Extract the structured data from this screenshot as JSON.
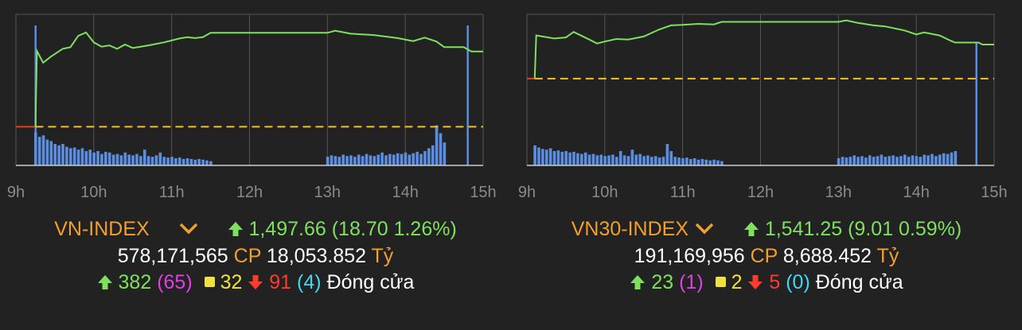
{
  "panels": [
    {
      "name": "VN-INDEX",
      "value": "1,497.66",
      "change": "(18.70 1.26%)",
      "volume": "578,171,565",
      "volume_unit": "CP",
      "turnover": "18,053.852",
      "turnover_unit": "Tỷ",
      "advancers": "382",
      "ceiling": "(65)",
      "unchanged": "32",
      "decliners": "91",
      "floor": "(4)",
      "status": "Đóng cửa"
    },
    {
      "name": "VN30-INDEX",
      "value": "1,541.25",
      "change": "(9.01 0.59%)",
      "volume": "191,169,956",
      "volume_unit": "CP",
      "turnover": "8,688.452",
      "turnover_unit": "Tỷ",
      "advancers": "23",
      "ceiling": "(1)",
      "unchanged": "2",
      "decliners": "5",
      "floor": "(0)",
      "status": "Đóng cửa"
    }
  ],
  "colors": {
    "line": "#7fe060",
    "reference": "#f0c030",
    "volume": "#5b8ee0",
    "grid": "#555555",
    "axis_text": "#8a8a8a",
    "name": "#f0a030"
  },
  "icons": [
    "arrow-up-icon",
    "chevron-down-icon",
    "square-icon",
    "arrow-down-icon"
  ],
  "chart_data": [
    {
      "type": "line",
      "x_ticks": [
        "9h",
        "10h",
        "11h",
        "12h",
        "13h",
        "14h",
        "15h"
      ],
      "x_range": [
        9,
        15
      ],
      "y_range": [
        1470,
        1505
      ],
      "reference_value": 1478.96,
      "grid": true,
      "series": [
        {
          "x": [
            9.25,
            9.27,
            9.35,
            9.45,
            9.6,
            9.7,
            9.8,
            9.9,
            10.0,
            10.1,
            10.2,
            10.3,
            10.4,
            10.5,
            10.7,
            10.9,
            11.1,
            11.2,
            11.3,
            11.4,
            11.5,
            12.0,
            12.5,
            13.0,
            13.1,
            13.3,
            13.6,
            13.9,
            14.1,
            14.25,
            14.4,
            14.5,
            14.75,
            14.85,
            15.0
          ],
          "y": [
            1478.96,
            1496.5,
            1493.8,
            1495.2,
            1497.0,
            1497.4,
            1500.0,
            1500.8,
            1498.5,
            1497.5,
            1497.8,
            1497.0,
            1498.0,
            1497.2,
            1497.8,
            1498.5,
            1499.4,
            1499.7,
            1499.5,
            1499.7,
            1500.7,
            1500.7,
            1500.7,
            1500.7,
            1501.2,
            1500.5,
            1500.2,
            1499.5,
            1498.8,
            1499.6,
            1498.7,
            1497.4,
            1497.4,
            1496.4,
            1496.4
          ]
        }
      ],
      "volume": {
        "x": [
          9.25,
          9.3,
          9.35,
          9.4,
          9.45,
          9.5,
          9.55,
          9.6,
          9.65,
          9.7,
          9.75,
          9.8,
          9.85,
          9.9,
          9.95,
          10.0,
          10.05,
          10.1,
          10.15,
          10.2,
          10.25,
          10.3,
          10.35,
          10.4,
          10.45,
          10.5,
          10.55,
          10.6,
          10.65,
          10.7,
          10.75,
          10.8,
          10.85,
          10.9,
          10.95,
          11.0,
          11.05,
          11.1,
          11.15,
          11.2,
          11.25,
          11.3,
          11.35,
          11.4,
          11.45,
          11.5,
          13.0,
          13.05,
          13.1,
          13.15,
          13.2,
          13.25,
          13.3,
          13.35,
          13.4,
          13.45,
          13.5,
          13.55,
          13.6,
          13.65,
          13.7,
          13.75,
          13.8,
          13.85,
          13.9,
          13.95,
          14.0,
          14.05,
          14.1,
          14.15,
          14.2,
          14.25,
          14.3,
          14.35,
          14.4,
          14.45,
          14.5
        ],
        "v": [
          0.46,
          0.4,
          0.42,
          0.36,
          0.34,
          0.3,
          0.28,
          0.3,
          0.26,
          0.24,
          0.25,
          0.22,
          0.24,
          0.2,
          0.22,
          0.18,
          0.2,
          0.16,
          0.19,
          0.18,
          0.15,
          0.16,
          0.14,
          0.18,
          0.15,
          0.14,
          0.16,
          0.13,
          0.22,
          0.13,
          0.12,
          0.14,
          0.18,
          0.12,
          0.11,
          0.12,
          0.1,
          0.11,
          0.09,
          0.1,
          0.09,
          0.08,
          0.09,
          0.08,
          0.07,
          0.06,
          0.12,
          0.14,
          0.13,
          0.12,
          0.15,
          0.13,
          0.14,
          0.12,
          0.15,
          0.13,
          0.16,
          0.14,
          0.13,
          0.15,
          0.18,
          0.14,
          0.16,
          0.15,
          0.17,
          0.16,
          0.18,
          0.15,
          0.17,
          0.19,
          0.16,
          0.2,
          0.24,
          0.28,
          0.56,
          0.45,
          0.32
        ],
        "spikes": [
          {
            "x": 9.25,
            "v": 1.0
          },
          {
            "x": 14.8,
            "v": 1.0
          }
        ]
      }
    },
    {
      "type": "line",
      "x_ticks": [
        "9h",
        "10h",
        "11h",
        "12h",
        "13h",
        "14h",
        "15h"
      ],
      "x_range": [
        9,
        15
      ],
      "y_range": [
        1515,
        1545
      ],
      "reference_value": 1532.24,
      "grid": true,
      "series": [
        {
          "x": [
            9.1,
            9.12,
            9.2,
            9.35,
            9.5,
            9.6,
            9.8,
            9.9,
            10.0,
            10.15,
            10.3,
            10.5,
            10.7,
            10.85,
            11.0,
            11.2,
            11.4,
            11.5,
            12.0,
            12.5,
            13.0,
            13.1,
            13.25,
            13.45,
            13.6,
            13.85,
            14.0,
            14.1,
            14.3,
            14.45,
            14.5,
            14.7,
            14.8,
            14.85,
            15.0
          ],
          "y": [
            1532.24,
            1540.8,
            1540.6,
            1540.2,
            1540.4,
            1541.5,
            1540.0,
            1539.2,
            1539.6,
            1540.1,
            1540.0,
            1540.6,
            1542.0,
            1542.8,
            1542.9,
            1543.1,
            1543.0,
            1543.5,
            1543.5,
            1543.5,
            1543.5,
            1543.8,
            1543.3,
            1542.8,
            1542.6,
            1541.8,
            1541.0,
            1541.4,
            1540.8,
            1539.7,
            1539.4,
            1539.4,
            1539.4,
            1539.0,
            1539.0
          ]
        }
      ],
      "volume": {
        "x": [
          9.1,
          9.15,
          9.2,
          9.25,
          9.3,
          9.35,
          9.4,
          9.45,
          9.5,
          9.55,
          9.6,
          9.65,
          9.7,
          9.75,
          9.8,
          9.85,
          9.9,
          9.95,
          10.0,
          10.05,
          10.1,
          10.15,
          10.2,
          10.25,
          10.3,
          10.35,
          10.4,
          10.45,
          10.5,
          10.55,
          10.6,
          10.65,
          10.7,
          10.75,
          10.8,
          10.85,
          10.9,
          10.95,
          11.0,
          11.05,
          11.1,
          11.15,
          11.2,
          11.25,
          11.3,
          11.35,
          11.4,
          11.45,
          11.5,
          13.0,
          13.05,
          13.1,
          13.15,
          13.2,
          13.25,
          13.3,
          13.35,
          13.4,
          13.45,
          13.5,
          13.55,
          13.6,
          13.65,
          13.7,
          13.75,
          13.8,
          13.85,
          13.9,
          13.95,
          14.0,
          14.05,
          14.1,
          14.15,
          14.2,
          14.25,
          14.3,
          14.35,
          14.4,
          14.45,
          14.5
        ],
        "v": [
          0.28,
          0.25,
          0.23,
          0.22,
          0.24,
          0.2,
          0.21,
          0.19,
          0.2,
          0.18,
          0.19,
          0.17,
          0.16,
          0.18,
          0.15,
          0.16,
          0.14,
          0.15,
          0.13,
          0.14,
          0.15,
          0.12,
          0.2,
          0.14,
          0.13,
          0.22,
          0.15,
          0.16,
          0.13,
          0.14,
          0.12,
          0.13,
          0.11,
          0.12,
          0.3,
          0.2,
          0.12,
          0.11,
          0.1,
          0.11,
          0.09,
          0.1,
          0.08,
          0.09,
          0.08,
          0.07,
          0.08,
          0.07,
          0.06,
          0.1,
          0.12,
          0.11,
          0.12,
          0.14,
          0.12,
          0.13,
          0.11,
          0.14,
          0.12,
          0.13,
          0.15,
          0.12,
          0.13,
          0.14,
          0.12,
          0.13,
          0.15,
          0.12,
          0.14,
          0.13,
          0.12,
          0.15,
          0.14,
          0.16,
          0.13,
          0.15,
          0.17,
          0.16,
          0.18,
          0.2
        ],
        "spikes": [
          {
            "x": 14.77,
            "v": 0.88
          }
        ]
      }
    }
  ]
}
